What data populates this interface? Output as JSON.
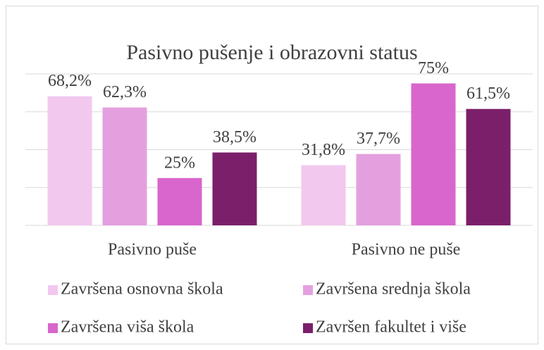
{
  "chart_data": {
    "type": "bar",
    "title": "Pasivno pušenje i obrazovni status",
    "categories": [
      "Pasivno puše",
      "Pasivno ne puše"
    ],
    "series": [
      {
        "name": "Završena osnovna škola",
        "color": "#f2c8ee",
        "values": [
          68.2,
          31.8
        ],
        "value_labels": [
          "68,2%",
          "31,8%"
        ]
      },
      {
        "name": "Završena srednja škola",
        "color": "#e4a0de",
        "values": [
          62.3,
          37.7
        ],
        "value_labels": [
          "62,3%",
          "37,7%"
        ]
      },
      {
        "name": "Završena viša škola",
        "color": "#d966cc",
        "values": [
          25,
          75
        ],
        "value_labels": [
          "25%",
          "75%"
        ]
      },
      {
        "name": "Završen fakultet i više",
        "color": "#7b1f6a",
        "values": [
          38.5,
          61.5
        ],
        "value_labels": [
          "38,5%",
          "61,5%"
        ]
      }
    ],
    "ylim": [
      0,
      80
    ],
    "yticks": [
      0,
      20,
      40,
      60,
      80
    ],
    "grid": true,
    "legend": "bottom"
  }
}
